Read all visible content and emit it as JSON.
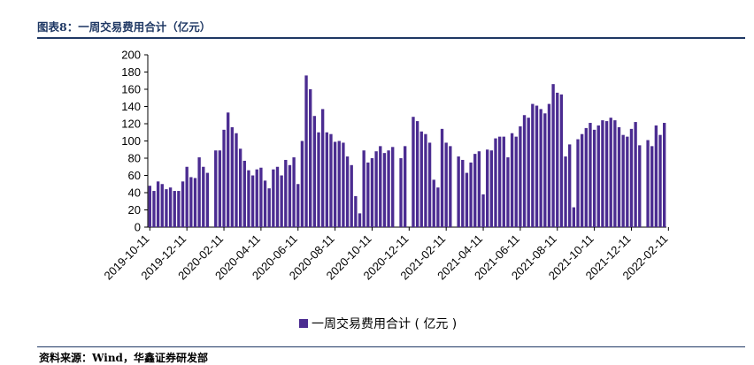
{
  "header": {
    "title": "图表8：一周交易费用合计（亿元）"
  },
  "footer": {
    "source": "资料来源：Wind，华鑫证券研发部"
  },
  "colors": {
    "bar": "#4b2c91",
    "rule": "#1f3864"
  },
  "chart_data": {
    "type": "bar",
    "title": "",
    "xlabel": "",
    "ylabel": "",
    "ylim": [
      0,
      200
    ],
    "yticks": [
      0,
      20,
      40,
      60,
      80,
      100,
      120,
      140,
      160,
      180,
      200
    ],
    "legend": "bottom",
    "series": [
      {
        "name": "一周交易费用合计（亿元）",
        "legend_label": "一周交易费用合计 ( 亿元 )",
        "values": [
          48,
          42,
          53,
          50,
          44,
          46,
          42,
          42,
          53,
          70,
          58,
          57,
          81,
          70,
          63,
          0,
          89,
          89,
          113,
          133,
          116,
          109,
          91,
          77,
          66,
          60,
          67,
          69,
          54,
          45,
          67,
          70,
          60,
          78,
          72,
          81,
          50,
          100,
          176,
          160,
          129,
          110,
          137,
          110,
          108,
          99,
          100,
          98,
          82,
          72,
          36,
          16,
          89,
          75,
          80,
          88,
          94,
          86,
          89,
          93,
          0,
          80,
          94,
          0,
          128,
          123,
          111,
          108,
          98,
          55,
          46,
          114,
          98,
          94,
          0,
          82,
          78,
          63,
          75,
          85,
          88,
          38,
          90,
          89,
          103,
          105,
          105,
          81,
          109,
          105,
          117,
          130,
          127,
          143,
          141,
          137,
          132,
          143,
          166,
          156,
          154,
          82,
          96,
          23,
          102,
          108,
          115,
          121,
          113,
          118,
          124,
          123,
          127,
          124,
          116,
          107,
          105,
          114,
          122,
          95,
          0,
          101,
          94,
          118,
          107,
          121
        ]
      }
    ],
    "x_tick_labels": [
      "2019-10-11",
      "2019-12-11",
      "2020-02-11",
      "2020-04-11",
      "2020-06-11",
      "2020-08-11",
      "2020-10-11",
      "2020-12-11",
      "2021-02-11",
      "2021-04-11",
      "2021-06-11",
      "2021-08-11",
      "2021-10-11",
      "2021-12-11",
      "2022-02-11"
    ],
    "x_tick_positions": [
      0,
      9,
      18,
      27,
      36,
      45,
      54,
      63,
      72,
      81,
      90,
      99,
      108,
      117,
      126
    ]
  }
}
